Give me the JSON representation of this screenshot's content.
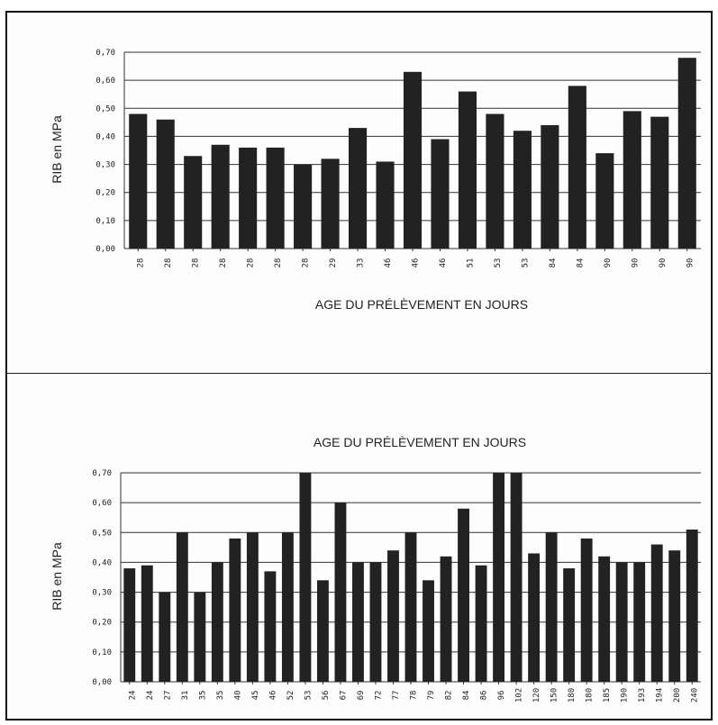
{
  "chart_data": [
    {
      "type": "bar",
      "title": "",
      "xlabel": "AGE DU PRÉLÈVEMENT EN JOURS",
      "ylabel": "RIB en MPa",
      "ylim": [
        0,
        0.7
      ],
      "yticks": [
        "0,00",
        "0,10",
        "0,20",
        "0,30",
        "0,40",
        "0,50",
        "0,60",
        "0,70"
      ],
      "grid": "horizontal",
      "xlabel_position": "bottom",
      "categories": [
        "28",
        "28",
        "28",
        "28",
        "28",
        "28",
        "28",
        "29",
        "33",
        "46",
        "46",
        "46",
        "51",
        "53",
        "53",
        "84",
        "84",
        "90",
        "90",
        "90",
        "90"
      ],
      "values": [
        0.48,
        0.46,
        0.33,
        0.37,
        0.36,
        0.36,
        0.3,
        0.32,
        0.43,
        0.31,
        0.63,
        0.39,
        0.56,
        0.48,
        0.42,
        0.44,
        0.58,
        0.34,
        0.49,
        0.47,
        0.68
      ],
      "color": "#222222"
    },
    {
      "type": "bar",
      "title": "",
      "xlabel": "AGE DU PRÉLÈVEMENT EN JOURS",
      "ylabel": "RIB en MPa",
      "ylim": [
        0,
        0.7
      ],
      "yticks": [
        "0,00",
        "0,10",
        "0,20",
        "0,30",
        "0,40",
        "0,50",
        "0,60",
        "0,70"
      ],
      "grid": "horizontal",
      "xlabel_position": "top",
      "categories": [
        "24",
        "24",
        "27",
        "31",
        "35",
        "35",
        "40",
        "45",
        "46",
        "52",
        "53",
        "56",
        "67",
        "69",
        "72",
        "77",
        "78",
        "79",
        "82",
        "84",
        "86",
        "96",
        "102",
        "120",
        "150",
        "180",
        "180",
        "185",
        "190",
        "193",
        "194",
        "200",
        "240"
      ],
      "values": [
        0.38,
        0.39,
        0.3,
        0.5,
        0.3,
        0.4,
        0.48,
        0.5,
        0.37,
        0.5,
        0.7,
        0.34,
        0.6,
        0.4,
        0.4,
        0.44,
        0.5,
        0.34,
        0.42,
        0.58,
        0.39,
        0.7,
        0.7,
        0.43,
        0.5,
        0.38,
        0.48,
        0.42,
        0.4,
        0.4,
        0.46,
        0.44,
        0.51
      ],
      "color": "#222222"
    }
  ]
}
